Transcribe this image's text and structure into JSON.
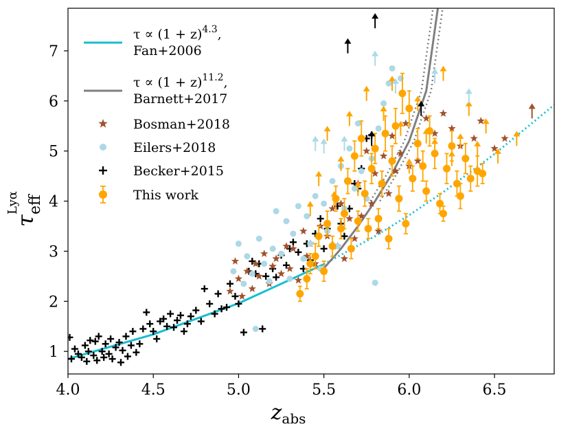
{
  "chart_data": {
    "type": "scatter",
    "xlabel": "z",
    "xlabel_sub": "abs",
    "ylabel": "τ",
    "ylabel_sub": "eff",
    "ylabel_sup": "Lyα",
    "xlim": [
      4.0,
      6.85
    ],
    "ylim": [
      0.55,
      7.85
    ],
    "x_ticks": [
      "4.0",
      "4.5",
      "5.0",
      "5.5",
      "6.0",
      "6.5"
    ],
    "y_ticks": [
      "1",
      "2",
      "3",
      "4",
      "5",
      "6",
      "7"
    ],
    "legend_position": "upper-left",
    "legend": [
      {
        "key": "fan",
        "line1": "τ ∝ (1 + z)",
        "exp": "4.3",
        "line1_end": ",",
        "line2": "Fan+2006",
        "color": "#17becf",
        "marker": "line"
      },
      {
        "key": "barnett",
        "line1": "τ ∝ (1 + z)",
        "exp": "11.2",
        "line1_end": ",",
        "line2": "Barnett+2017",
        "color": "#7f7f7f",
        "marker": "line"
      },
      {
        "key": "bosman",
        "label": "Bosman+2018",
        "color": "#a0522d",
        "marker": "star"
      },
      {
        "key": "eilers",
        "label": "Eilers+2018",
        "color": "#add8e6",
        "marker": "circle"
      },
      {
        "key": "becker",
        "label": "Becker+2015",
        "color": "#000000",
        "marker": "plus"
      },
      {
        "key": "thiswork",
        "label": "This work",
        "color": "#ffa500",
        "marker": "errorbar"
      }
    ],
    "series": [
      {
        "name": "Fan+2006 τ ∝ (1+z)^4.3",
        "style": "solid-then-dotted",
        "color": "#17becf",
        "x": [
          4.0,
          4.5,
          5.0,
          5.5,
          5.8,
          6.0,
          6.2,
          6.5,
          6.85
        ],
        "y": [
          0.85,
          1.34,
          1.96,
          2.74,
          3.3,
          3.72,
          4.18,
          4.94,
          5.92
        ]
      },
      {
        "name": "Barnett+2017 τ ∝ (1+z)^11.2",
        "style": "solid-then-dotted",
        "color": "#7f7f7f",
        "x": [
          5.5,
          5.6,
          5.7,
          5.8,
          5.9,
          6.0,
          6.1,
          6.17
        ],
        "y": [
          2.66,
          3.05,
          3.5,
          4.0,
          4.55,
          5.2,
          6.2,
          7.9
        ]
      },
      {
        "name": "Becker+2015",
        "marker": "plus",
        "color": "#000000",
        "x": [
          4.01,
          4.02,
          4.04,
          4.06,
          4.08,
          4.1,
          4.11,
          4.12,
          4.13,
          4.15,
          4.16,
          4.17,
          4.18,
          4.2,
          4.21,
          4.22,
          4.24,
          4.25,
          4.26,
          4.28,
          4.3,
          4.31,
          4.32,
          4.34,
          4.35,
          4.37,
          4.38,
          4.4,
          4.42,
          4.44,
          4.46,
          4.48,
          4.5,
          4.52,
          4.54,
          4.56,
          4.58,
          4.6,
          4.62,
          4.64,
          4.66,
          4.68,
          4.7,
          4.72,
          4.75,
          4.78,
          4.8,
          4.83,
          4.86,
          4.88,
          4.9,
          4.93,
          4.95,
          4.98,
          5.0,
          5.03,
          5.06,
          5.08,
          5.1,
          5.12,
          5.14,
          5.16,
          5.2,
          5.22,
          5.25,
          5.28,
          5.3,
          5.32,
          5.35,
          5.38,
          5.4,
          5.42,
          5.45,
          5.48,
          5.5,
          5.52,
          5.55,
          5.58,
          5.6,
          5.62,
          5.65,
          5.68,
          5.7,
          5.72,
          5.75,
          5.78
        ],
        "y": [
          1.28,
          0.85,
          1.05,
          0.95,
          0.88,
          1.12,
          0.8,
          1.0,
          1.22,
          0.92,
          1.2,
          0.82,
          1.3,
          1.0,
          0.88,
          1.15,
          0.95,
          1.25,
          0.85,
          1.08,
          1.18,
          0.78,
          1.02,
          1.3,
          0.9,
          1.12,
          1.4,
          0.98,
          1.15,
          1.45,
          1.78,
          1.55,
          1.4,
          1.25,
          1.6,
          1.65,
          1.5,
          1.75,
          1.48,
          1.62,
          1.72,
          1.4,
          1.55,
          1.7,
          1.82,
          1.6,
          2.25,
          1.95,
          1.75,
          2.15,
          1.85,
          1.88,
          2.35,
          2.1,
          1.95,
          1.38,
          2.6,
          2.8,
          2.55,
          2.75,
          1.45,
          2.5,
          2.65,
          2.48,
          2.92,
          2.72,
          3.05,
          3.18,
          2.98,
          2.65,
          3.15,
          2.82,
          3.35,
          3.65,
          3.05,
          3.45,
          3.12,
          3.9,
          3.55,
          3.3,
          3.85,
          4.35,
          4.25,
          4.65,
          5.25,
          5.32
        ]
      },
      {
        "name": "Bosman+2018",
        "marker": "star",
        "color": "#a0522d",
        "x": [
          4.95,
          4.98,
          5.0,
          5.02,
          5.05,
          5.08,
          5.1,
          5.12,
          5.15,
          5.18,
          5.2,
          5.22,
          5.25,
          5.28,
          5.3,
          5.32,
          5.35,
          5.38,
          5.4,
          5.42,
          5.45,
          5.48,
          5.5,
          5.52,
          5.55,
          5.58,
          5.6,
          5.62,
          5.65,
          5.68,
          5.7,
          5.72,
          5.75,
          5.78,
          5.8,
          5.82,
          5.85,
          5.88,
          5.9,
          5.92,
          5.95,
          5.98,
          6.0,
          6.05,
          6.1,
          6.15,
          6.2,
          6.25,
          6.3,
          6.38,
          6.42,
          6.5,
          6.56
        ],
        "y": [
          2.2,
          2.8,
          2.45,
          2.1,
          2.6,
          2.25,
          2.75,
          2.5,
          2.95,
          2.35,
          2.7,
          2.85,
          2.55,
          3.1,
          2.65,
          3.05,
          2.42,
          3.4,
          2.9,
          3.15,
          2.75,
          3.5,
          2.6,
          3.3,
          3.85,
          3.1,
          3.95,
          2.85,
          3.65,
          3.25,
          4.35,
          3.7,
          5.0,
          3.95,
          4.55,
          3.4,
          4.9,
          4.15,
          5.3,
          4.6,
          4.95,
          5.55,
          4.7,
          4.8,
          5.65,
          5.35,
          5.75,
          5.45,
          5.1,
          5.25,
          5.6,
          5.05,
          5.25
        ]
      },
      {
        "name": "Eilers+2018",
        "marker": "circle",
        "color": "#add8e6",
        "x": [
          4.97,
          5.0,
          5.03,
          5.05,
          5.08,
          5.1,
          5.12,
          5.15,
          5.18,
          5.2,
          5.22,
          5.25,
          5.28,
          5.3,
          5.32,
          5.35,
          5.38,
          5.4,
          5.42,
          5.45,
          5.48,
          5.5,
          5.52,
          5.55,
          5.58,
          5.6,
          5.62,
          5.65,
          5.68,
          5.7,
          5.72,
          5.75,
          5.78,
          5.8,
          5.82,
          5.85,
          5.88,
          5.9,
          5.95
        ],
        "y": [
          2.6,
          3.15,
          2.35,
          2.9,
          2.55,
          1.45,
          3.25,
          2.75,
          2.4,
          3.05,
          3.8,
          2.95,
          3.6,
          2.45,
          3.35,
          3.9,
          2.85,
          3.7,
          3.15,
          4.1,
          2.65,
          3.95,
          3.4,
          4.4,
          3.1,
          4.7,
          3.85,
          5.05,
          4.25,
          5.55,
          4.6,
          4.05,
          4.85,
          2.37,
          5.45,
          5.95,
          6.35,
          6.65,
          6.45
        ]
      },
      {
        "name": "This work",
        "marker": "circle-errorbar",
        "color": "#ffa500",
        "x": [
          5.36,
          5.4,
          5.42,
          5.45,
          5.47,
          5.5,
          5.52,
          5.55,
          5.57,
          5.6,
          5.62,
          5.64,
          5.66,
          5.68,
          5.7,
          5.72,
          5.74,
          5.76,
          5.78,
          5.8,
          5.82,
          5.84,
          5.86,
          5.88,
          5.9,
          5.92,
          5.94,
          5.96,
          5.98,
          6.0,
          6.02,
          6.05,
          6.08,
          6.1,
          6.12,
          6.15,
          6.18,
          6.2,
          6.22,
          6.25,
          6.28,
          6.3,
          6.33,
          6.36,
          6.4,
          6.43
        ],
        "y": [
          2.15,
          2.45,
          2.75,
          2.9,
          3.3,
          2.6,
          3.55,
          3.1,
          4.05,
          3.45,
          3.75,
          4.4,
          3.05,
          4.9,
          3.6,
          5.25,
          4.15,
          3.45,
          4.65,
          5.05,
          3.65,
          4.35,
          5.35,
          3.25,
          4.8,
          5.5,
          4.05,
          6.15,
          3.55,
          5.85,
          4.45,
          5.15,
          4.7,
          4.2,
          5.4,
          4.95,
          3.95,
          3.75,
          4.65,
          5.1,
          4.35,
          4.1,
          4.85,
          4.45,
          4.6,
          4.55
        ],
        "err": [
          0.15,
          0.2,
          0.2,
          0.25,
          0.2,
          0.2,
          0.25,
          0.2,
          0.25,
          0.2,
          0.3,
          0.25,
          0.2,
          0.3,
          0.2,
          0.35,
          0.25,
          0.2,
          0.3,
          0.3,
          0.2,
          0.25,
          0.35,
          0.2,
          0.3,
          0.35,
          0.25,
          0.4,
          0.2,
          0.35,
          0.25,
          0.3,
          0.3,
          0.2,
          0.3,
          0.3,
          0.2,
          0.15,
          0.3,
          0.3,
          0.25,
          0.25,
          0.3,
          0.25,
          0.3,
          0.2
        ]
      },
      {
        "name": "This work lower limits",
        "marker": "arrow-up",
        "color": "#ffa500",
        "x": [
          5.42,
          5.47,
          5.52,
          5.56,
          5.6,
          5.65,
          5.7,
          5.75,
          5.8,
          5.85,
          5.9,
          5.95,
          6.0,
          6.05,
          6.1,
          6.15,
          6.2,
          6.25,
          6.3,
          6.35,
          6.4,
          6.45,
          6.52,
          6.63
        ],
        "y": [
          3.7,
          4.3,
          5.2,
          3.9,
          4.6,
          5.5,
          4.1,
          6.0,
          4.8,
          5.6,
          6.2,
          5.3,
          4.55,
          5.8,
          5.15,
          4.95,
          6.4,
          4.7,
          5.05,
          5.7,
          4.9,
          5.35,
          4.75,
          5.1
        ]
      },
      {
        "name": "Eilers+2018 lower limits",
        "marker": "arrow-up",
        "color": "#add8e6",
        "x": [
          5.45,
          5.5,
          5.62,
          5.8,
          5.92,
          6.15,
          6.35
        ],
        "y": [
          5.0,
          4.95,
          5.0,
          6.7,
          6.15,
          6.35,
          5.95
        ]
      },
      {
        "name": "Bosman+2018 lower limits",
        "marker": "arrow-up",
        "color": "#a0522d",
        "x": [
          6.72
        ],
        "y": [
          5.65
        ]
      },
      {
        "name": "Becker+2015 lower limits",
        "marker": "arrow-up",
        "color": "#000000",
        "x": [
          5.64,
          5.8,
          6.07,
          5.78
        ],
        "y": [
          6.95,
          7.45,
          5.7,
          5.1
        ]
      }
    ]
  }
}
